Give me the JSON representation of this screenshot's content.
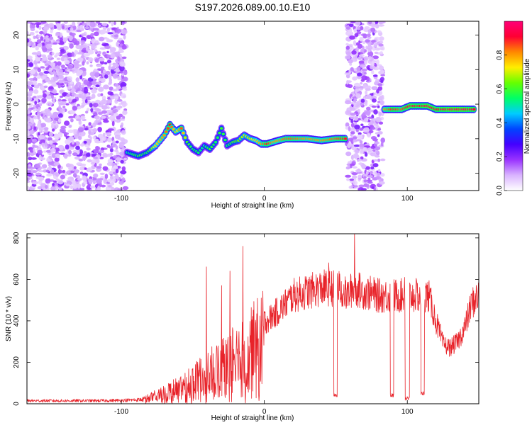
{
  "chart_data": [
    {
      "type": "heatmap",
      "title": "S197.2026.089.00.10.E10",
      "xlabel": "Height of straight line (km)",
      "ylabel": "Frequency (Hz)",
      "xlim": [
        -166,
        150
      ],
      "ylim": [
        -25,
        24
      ],
      "x_ticks": [
        -100,
        0,
        100
      ],
      "y_ticks": [
        -20,
        -10,
        0,
        10,
        20
      ],
      "colorbar": {
        "label": "Normalized spectral amplitude",
        "range": [
          0,
          1
        ],
        "ticks": [
          0,
          0.2,
          0.4,
          0.6,
          0.8
        ],
        "tick_labels": [
          "0.0",
          "0.2",
          "0.4",
          "0.6",
          "0.8"
        ],
        "colors": [
          "#ffffff",
          "#d9b3ff",
          "#9933ff",
          "#4400ff",
          "#0044ff",
          "#00ccff",
          "#00ff66",
          "#66ff00",
          "#ffee00",
          "#ff8800",
          "#ff0033",
          "#ff0077"
        ]
      },
      "noise_regions": [
        {
          "x": [
            -166,
            -97
          ],
          "y": [
            -25,
            24
          ],
          "level": 0.15
        },
        {
          "x": [
            58,
            83
          ],
          "y": [
            -25,
            24
          ],
          "level": 0.15
        }
      ],
      "ridge": {
        "x": [
          -96,
          -88,
          -82,
          -76,
          -70,
          -66,
          -62,
          -58,
          -54,
          -50,
          -46,
          -42,
          -38,
          -34,
          -30,
          -26,
          -22,
          -18,
          -14,
          -10,
          -6,
          -2,
          2,
          6,
          10,
          15,
          20,
          30,
          40,
          50,
          58,
          84,
          90,
          96,
          102,
          108,
          114,
          120,
          130,
          140,
          148
        ],
        "freq": [
          -14,
          -15,
          -14,
          -12,
          -9,
          -6,
          -8,
          -7,
          -11,
          -13,
          -14,
          -12,
          -13,
          -11,
          -7,
          -12,
          -11,
          -10.5,
          -9,
          -10,
          -10.5,
          -11.5,
          -11.5,
          -11,
          -10.5,
          -10,
          -10,
          -10,
          -10.5,
          -10,
          -10,
          -1.5,
          -1.5,
          -1.5,
          -0.5,
          -0.5,
          -0.5,
          -1.5,
          -1.5,
          -1.5,
          -1.5
        ],
        "amp": [
          0.5,
          0.6,
          0.55,
          0.75,
          0.8,
          0.9,
          0.7,
          0.85,
          0.6,
          0.55,
          0.55,
          0.5,
          0.6,
          0.55,
          0.6,
          0.55,
          0.6,
          0.65,
          0.7,
          0.7,
          0.75,
          0.8,
          0.9,
          0.8,
          0.8,
          0.85,
          0.85,
          0.8,
          0.8,
          0.85,
          0.9,
          0.8,
          0.9,
          0.85,
          0.95,
          0.9,
          0.95,
          0.9,
          0.95,
          0.95,
          0.9
        ]
      }
    },
    {
      "type": "line",
      "xlabel": "Height of straight line (km)",
      "ylabel": "SNR (10 * v/v)",
      "xlim": [
        -166,
        150
      ],
      "ylim": [
        0,
        820
      ],
      "x_ticks": [
        -100,
        0,
        100
      ],
      "y_ticks": [
        0,
        200,
        400,
        600,
        800
      ],
      "series": [
        {
          "name": "SNR",
          "color": "#e8232a",
          "envelope_x": [
            -166,
            -120,
            -100,
            -85,
            -75,
            -65,
            -55,
            -45,
            -35,
            -25,
            -15,
            -5,
            5,
            15,
            20,
            30,
            40,
            48,
            52,
            55,
            58,
            62,
            70,
            80,
            87,
            92,
            96,
            101,
            104,
            108,
            111,
            115,
            120,
            125,
            130,
            135,
            140,
            145,
            150
          ],
          "envelope_y": [
            18,
            18,
            20,
            25,
            55,
            90,
            120,
            170,
            220,
            280,
            320,
            400,
            450,
            520,
            560,
            580,
            600,
            600,
            600,
            580,
            560,
            600,
            580,
            560,
            560,
            560,
            560,
            560,
            560,
            560,
            570,
            560,
            430,
            310,
            290,
            320,
            390,
            520,
            560
          ],
          "dropouts": [
            [
              48.5,
              51,
              30
            ],
            [
              88,
              90.5,
              30
            ],
            [
              98.5,
              101.5,
              15
            ],
            [
              109.5,
              112,
              40
            ]
          ],
          "spikes": [
            [
              -40.5,
              660
            ],
            [
              -30,
              570
            ],
            [
              -24,
              640
            ],
            [
              -15,
              760
            ],
            [
              45,
              680
            ],
            [
              63,
              820
            ],
            [
              98,
              610
            ]
          ]
        }
      ]
    }
  ]
}
